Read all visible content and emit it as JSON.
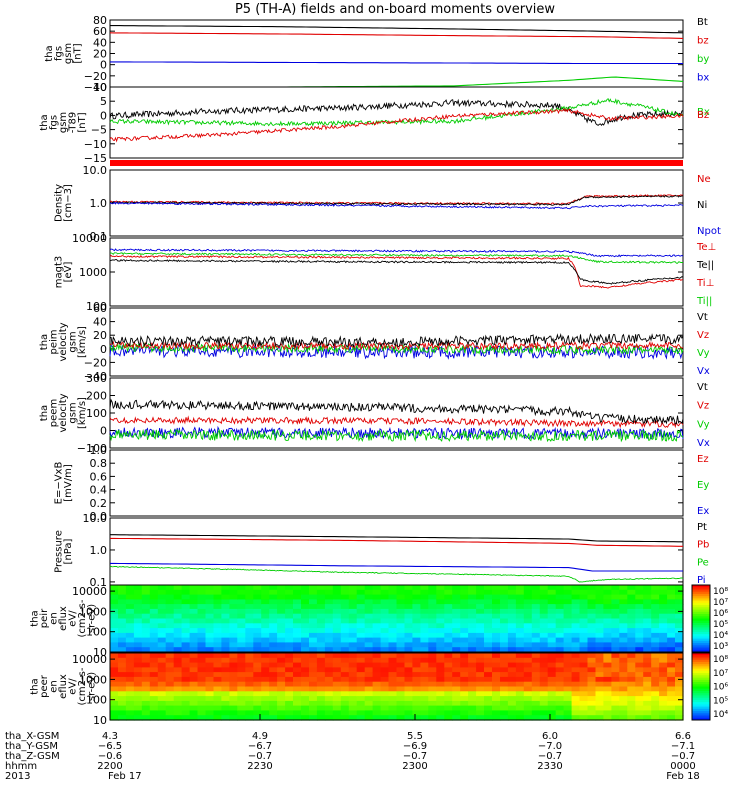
{
  "title": "P5 (TH-A) fields and on-board moments overview",
  "colors": {
    "black": "#000000",
    "red": "#e00000",
    "green": "#00cc00",
    "blue": "#0000e0",
    "axis": "#000000",
    "bar": "#ff0000"
  },
  "chart_data": [
    {
      "type": "line",
      "panel": "fgs-gsm-total",
      "ylabel_lines": [
        "tha",
        "fgs",
        "gsm",
        "[nT]"
      ],
      "ylim": [
        -40,
        80
      ],
      "yticks": [
        "80",
        "60",
        "40",
        "20",
        "0",
        "−20",
        "−40"
      ],
      "legend": [
        {
          "label": "Bt",
          "color": "black"
        },
        {
          "label": "bz",
          "color": "red"
        },
        {
          "label": "by",
          "color": "green"
        },
        {
          "label": "bx",
          "color": "blue"
        }
      ],
      "series": [
        {
          "color": "black",
          "kind": "smooth",
          "points": [
            [
              0,
              70
            ],
            [
              0.3,
              68
            ],
            [
              0.6,
              64
            ],
            [
              0.85,
              60
            ],
            [
              1,
              57
            ]
          ]
        },
        {
          "color": "red",
          "kind": "smooth",
          "points": [
            [
              0,
              57
            ],
            [
              0.3,
              55
            ],
            [
              0.6,
              52
            ],
            [
              0.85,
              50
            ],
            [
              1,
              47
            ]
          ]
        },
        {
          "color": "blue",
          "kind": "smooth",
          "points": [
            [
              0,
              5
            ],
            [
              0.3,
              4
            ],
            [
              0.6,
              3
            ],
            [
              0.85,
              2
            ],
            [
              1,
              2
            ]
          ]
        },
        {
          "color": "green",
          "kind": "smooth",
          "points": [
            [
              0,
              -40
            ],
            [
              0.3,
              -40
            ],
            [
              0.6,
              -38
            ],
            [
              0.8,
              -28
            ],
            [
              0.88,
              -22
            ],
            [
              1,
              -30
            ]
          ]
        }
      ]
    },
    {
      "type": "line",
      "panel": "fgs-gsm-detrended",
      "ylabel_lines": [
        "tha",
        "fgs",
        "gsm",
        "-T89",
        "[nT]"
      ],
      "ylim": [
        -17,
        10
      ],
      "yticks": [
        "10",
        "5",
        "0",
        "−5",
        "−10",
        "−15"
      ],
      "legend": [
        {
          "label": "Bx",
          "color": "green"
        },
        {
          "label": "Bz",
          "color": "red"
        }
      ],
      "series": [
        {
          "color": "black",
          "kind": "noisy",
          "amp": 1.2,
          "points": [
            [
              0,
              -1
            ],
            [
              0.2,
              1
            ],
            [
              0.4,
              2
            ],
            [
              0.6,
              4
            ],
            [
              0.78,
              3
            ],
            [
              0.85,
              -4
            ],
            [
              0.9,
              -1
            ],
            [
              1,
              0
            ]
          ]
        },
        {
          "color": "green",
          "kind": "noisy",
          "amp": 0.8,
          "points": [
            [
              0,
              -3
            ],
            [
              0.3,
              -4
            ],
            [
              0.6,
              -3
            ],
            [
              0.8,
              2
            ],
            [
              0.87,
              5
            ],
            [
              0.92,
              3
            ],
            [
              1,
              -1
            ]
          ]
        },
        {
          "color": "red",
          "kind": "noisy",
          "amp": 0.7,
          "points": [
            [
              0,
              -10
            ],
            [
              0.2,
              -8
            ],
            [
              0.4,
              -5
            ],
            [
              0.6,
              -1
            ],
            [
              0.8,
              1
            ],
            [
              0.87,
              -2
            ],
            [
              1,
              -1
            ]
          ]
        }
      ]
    },
    {
      "type": "line",
      "panel": "density",
      "scale": "log",
      "ylabel_lines": [
        "Density",
        "[cm−3]"
      ],
      "ylim": [
        0.1,
        10
      ],
      "yticks": [
        "10.0",
        "1.0",
        "0.1"
      ],
      "legend": [
        {
          "label": "Ne",
          "color": "red"
        },
        {
          "label": "Ni",
          "color": "black"
        },
        {
          "label": "Npot",
          "color": "blue"
        }
      ],
      "series": [
        {
          "color": "red",
          "kind": "noisy",
          "amp": 0.02,
          "points": [
            [
              0,
              1.1
            ],
            [
              0.4,
              1.0
            ],
            [
              0.8,
              0.95
            ],
            [
              0.83,
              1.6
            ],
            [
              1,
              1.7
            ]
          ]
        },
        {
          "color": "black",
          "kind": "noisy",
          "amp": 0.02,
          "points": [
            [
              0,
              1.05
            ],
            [
              0.4,
              0.95
            ],
            [
              0.8,
              0.9
            ],
            [
              0.83,
              1.5
            ],
            [
              1,
              1.6
            ]
          ]
        },
        {
          "color": "blue",
          "kind": "noisy",
          "amp": 0.02,
          "points": [
            [
              0,
              1.0
            ],
            [
              0.4,
              0.85
            ],
            [
              0.8,
              0.7
            ],
            [
              0.83,
              0.8
            ],
            [
              1,
              0.85
            ]
          ]
        }
      ]
    },
    {
      "type": "line",
      "panel": "temperature",
      "scale": "log",
      "ylabel_lines": [
        "magt3",
        "[eV]"
      ],
      "ylim": [
        100,
        10000
      ],
      "yticks": [
        "10000",
        "1000",
        "100"
      ],
      "legend": [
        {
          "label": "Te⊥",
          "color": "red"
        },
        {
          "label": "Te||",
          "color": "black"
        },
        {
          "label": "Ti⊥",
          "color": "red"
        },
        {
          "label": "Ti||",
          "color": "green"
        }
      ],
      "series": [
        {
          "color": "blue",
          "kind": "noisy",
          "amp": 0.02,
          "points": [
            [
              0,
              4500
            ],
            [
              0.4,
              4200
            ],
            [
              0.8,
              4000
            ],
            [
              0.85,
              3000
            ],
            [
              1,
              3000
            ]
          ]
        },
        {
          "color": "green",
          "kind": "noisy",
          "amp": 0.02,
          "points": [
            [
              0,
              3500
            ],
            [
              0.4,
              3200
            ],
            [
              0.8,
              3000
            ],
            [
              0.85,
              2000
            ],
            [
              1,
              1900
            ]
          ]
        },
        {
          "color": "red",
          "kind": "noisy",
          "amp": 0.02,
          "points": [
            [
              0,
              2900
            ],
            [
              0.4,
              2700
            ],
            [
              0.8,
              2500
            ],
            [
              0.82,
              400
            ],
            [
              0.87,
              350
            ],
            [
              1,
              600
            ]
          ]
        },
        {
          "color": "black",
          "kind": "noisy",
          "amp": 0.02,
          "points": [
            [
              0,
              2200
            ],
            [
              0.4,
              2000
            ],
            [
              0.8,
              1900
            ],
            [
              0.82,
              600
            ],
            [
              0.87,
              450
            ],
            [
              1,
              700
            ]
          ]
        }
      ]
    },
    {
      "type": "line",
      "panel": "peim-velocity",
      "ylabel_lines": [
        "tha",
        "peim",
        "velocity",
        "gsm",
        "[km/s]"
      ],
      "ylim": [
        -40,
        60
      ],
      "yticks": [
        "60",
        "40",
        "20",
        "0",
        "−20",
        "−40"
      ],
      "legend": [
        {
          "label": "Vt",
          "color": "black"
        },
        {
          "label": "Vz",
          "color": "red"
        },
        {
          "label": "Vy",
          "color": "green"
        },
        {
          "label": "Vx",
          "color": "blue"
        }
      ],
      "series": [
        {
          "color": "blue",
          "kind": "noisy",
          "amp": 9,
          "points": [
            [
              0,
              -3
            ],
            [
              0.5,
              -5
            ],
            [
              1,
              -5
            ]
          ]
        },
        {
          "color": "green",
          "kind": "noisy",
          "amp": 6,
          "points": [
            [
              0,
              2
            ],
            [
              0.5,
              0
            ],
            [
              1,
              -2
            ]
          ]
        },
        {
          "color": "red",
          "kind": "noisy",
          "amp": 5,
          "points": [
            [
              0,
              5
            ],
            [
              0.5,
              4
            ],
            [
              1,
              5
            ]
          ]
        },
        {
          "color": "black",
          "kind": "noisy",
          "amp": 7,
          "points": [
            [
              0,
              12
            ],
            [
              0.5,
              10
            ],
            [
              0.85,
              15
            ],
            [
              1,
              14
            ]
          ]
        }
      ]
    },
    {
      "type": "line",
      "panel": "peem-velocity",
      "ylabel_lines": [
        "tha",
        "peem",
        "velocity",
        "gsm",
        "[km/s]"
      ],
      "ylim": [
        -100,
        300
      ],
      "yticks": [
        "300",
        "200",
        "100",
        "0",
        "−100"
      ],
      "legend": [
        {
          "label": "Vt",
          "color": "black"
        },
        {
          "label": "Vz",
          "color": "red"
        },
        {
          "label": "Vy",
          "color": "green"
        },
        {
          "label": "Vx",
          "color": "blue"
        }
      ],
      "series": [
        {
          "color": "blue",
          "kind": "noisy",
          "amp": 30,
          "points": [
            [
              0,
              -10
            ],
            [
              0.5,
              -15
            ],
            [
              1,
              -20
            ]
          ]
        },
        {
          "color": "green",
          "kind": "noisy",
          "amp": 30,
          "points": [
            [
              0,
              -25
            ],
            [
              0.5,
              -30
            ],
            [
              1,
              -30
            ]
          ]
        },
        {
          "color": "red",
          "kind": "noisy",
          "amp": 18,
          "points": [
            [
              0,
              60
            ],
            [
              0.5,
              55
            ],
            [
              0.85,
              40
            ],
            [
              1,
              35
            ]
          ]
        },
        {
          "color": "black",
          "kind": "noisy",
          "amp": 25,
          "points": [
            [
              0,
              150
            ],
            [
              0.5,
              130
            ],
            [
              0.8,
              110
            ],
            [
              0.85,
              70
            ],
            [
              1,
              60
            ]
          ]
        }
      ]
    },
    {
      "type": "line",
      "panel": "efield",
      "ylabel_lines": [
        "E=−VxB",
        "[mV/m]"
      ],
      "ylim": [
        0,
        1
      ],
      "yticks": [
        "1.0",
        "0.8",
        "0.6",
        "0.4",
        "0.2",
        "0.0"
      ],
      "legend": [
        {
          "label": "Ez",
          "color": "red"
        },
        {
          "label": "Ey",
          "color": "green"
        },
        {
          "label": "Ex",
          "color": "blue"
        }
      ],
      "series": []
    },
    {
      "type": "line",
      "panel": "pressure",
      "scale": "log",
      "ylabel_lines": [
        "Pressure",
        "[nPa]"
      ],
      "ylim": [
        0.08,
        10
      ],
      "yticks": [
        "10.0",
        "1.0",
        "0.1"
      ],
      "legend": [
        {
          "label": "Pt",
          "color": "black"
        },
        {
          "label": "Pb",
          "color": "red"
        },
        {
          "label": "Pe",
          "color": "green"
        },
        {
          "label": "Pi",
          "color": "blue"
        }
      ],
      "series": [
        {
          "color": "black",
          "kind": "smooth",
          "points": [
            [
              0,
              3.0
            ],
            [
              0.4,
              2.6
            ],
            [
              0.8,
              2.2
            ],
            [
              0.85,
              1.9
            ],
            [
              1,
              1.8
            ]
          ]
        },
        {
          "color": "red",
          "kind": "smooth",
          "points": [
            [
              0,
              2.3
            ],
            [
              0.4,
              2.0
            ],
            [
              0.8,
              1.6
            ],
            [
              0.85,
              1.4
            ],
            [
              1,
              1.3
            ]
          ]
        },
        {
          "color": "blue",
          "kind": "smooth",
          "points": [
            [
              0,
              0.38
            ],
            [
              0.4,
              0.32
            ],
            [
              0.8,
              0.28
            ],
            [
              0.84,
              0.22
            ],
            [
              1,
              0.22
            ]
          ]
        },
        {
          "color": "green",
          "kind": "noisy",
          "amp": 0.01,
          "points": [
            [
              0,
              0.3
            ],
            [
              0.4,
              0.2
            ],
            [
              0.8,
              0.15
            ],
            [
              0.82,
              0.1
            ],
            [
              0.87,
              0.12
            ],
            [
              1,
              0.13
            ]
          ]
        }
      ]
    },
    {
      "type": "heatmap",
      "panel": "peir-energy-flux",
      "ylabel_lines": [
        "tha",
        "peir",
        "en",
        "eflux",
        "eV/",
        "(cm2-s-",
        "sr-eV)"
      ],
      "ylim": [
        10,
        20000
      ],
      "yticks": [
        "10000",
        "1000",
        "100",
        "10"
      ],
      "colorbar_ticks": [
        "10⁸",
        "10⁷",
        "10⁶",
        "10⁵",
        "10⁴",
        "10³"
      ]
    },
    {
      "type": "heatmap",
      "panel": "peer-energy-flux",
      "ylabel_lines": [
        "tha",
        "peer",
        "en",
        "eflux",
        "eV/",
        "(cm2-s-",
        "sr-eV)"
      ],
      "ylim": [
        10,
        20000
      ],
      "yticks": [
        "10000",
        "1000",
        "100",
        "10"
      ],
      "colorbar_ticks": [
        "10⁸",
        "10⁷",
        "10⁶",
        "10⁵",
        "10⁴"
      ]
    }
  ],
  "xaxis": {
    "rows": [
      {
        "label": "tha_X-GSM",
        "values": [
          "4.3",
          "4.9",
          "5.5",
          "6.0",
          "6.6"
        ]
      },
      {
        "label": "tha_Y-GSM",
        "values": [
          "−6.5",
          "−6.7",
          "−6.9",
          "−7.0",
          "−7.1"
        ]
      },
      {
        "label": "tha_Z-GSM",
        "values": [
          "−0.6",
          "−0.7",
          "−0.7",
          "−0.7",
          "−0.7"
        ]
      },
      {
        "label": "hhmm",
        "values": [
          "2200",
          "2230",
          "2300",
          "2330",
          "0000"
        ]
      }
    ],
    "year": "2013",
    "date_start": "Feb 17",
    "date_end": "Feb 18"
  }
}
